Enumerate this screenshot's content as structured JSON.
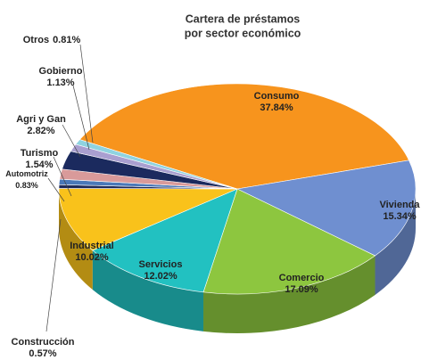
{
  "chart_data": {
    "type": "pie3d",
    "title": [
      "Cartera  de préstamos",
      "por sector económico"
    ],
    "categories": [
      "Consumo",
      "Vivienda",
      "Comercio",
      "Servicios",
      "Industrial",
      "Construcción",
      "Automotriz",
      "Turismo",
      "Agri y Gan",
      "Gobierno",
      "Otros"
    ],
    "values": [
      37.84,
      15.34,
      17.09,
      12.02,
      10.02,
      0.57,
      0.83,
      1.54,
      2.82,
      1.13,
      0.81
    ],
    "value_labels": [
      "37.84%",
      "15.34%",
      "17.09%",
      "12.02%",
      "10.02%",
      "0.57%",
      "0.83%",
      "1.54%",
      "2.82%",
      "1.13%",
      "0.81%"
    ],
    "colors": [
      "#f7941d",
      "#6f8fd0",
      "#8dc63f",
      "#22c1c1",
      "#f9c21b",
      "#1f2a5a",
      "#4a78b8",
      "#d99a9a",
      "#1b2a5e",
      "#a99fd0",
      "#8fd3e0"
    ]
  }
}
